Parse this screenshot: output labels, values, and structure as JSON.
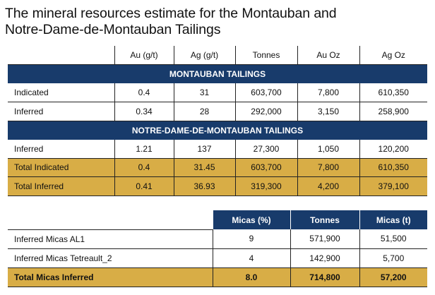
{
  "title": {
    "line1": "The mineral resources estimate for the Montauban and",
    "line2": "Notre-Dame-de-Montauban Tailings"
  },
  "resources_table": {
    "headers": [
      "Au (g/t)",
      "Ag (g/t)",
      "Tonnes",
      "Au Oz",
      "Ag Oz"
    ],
    "sections": [
      {
        "title": "MONTAUBAN TAILINGS",
        "rows": [
          {
            "label": "Indicated",
            "cells": [
              "0.4",
              "31",
              "603,700",
              "7,800",
              "610,350"
            ]
          },
          {
            "label": "Inferred",
            "cells": [
              "0.34",
              "28",
              "292,000",
              "3,150",
              "258,900"
            ]
          }
        ]
      },
      {
        "title": "NOTRE-DAME-DE-MONTAUBAN TAILINGS",
        "rows": [
          {
            "label": "Inferred",
            "cells": [
              "1.21",
              "137",
              "27,300",
              "1,050",
              "120,200"
            ]
          }
        ]
      }
    ],
    "totals": [
      {
        "label": "Total Indicated",
        "cells": [
          "0.4",
          "31.45",
          "603,700",
          "7,800",
          "610,350"
        ]
      },
      {
        "label": "Total Inferred",
        "cells": [
          "0.41",
          "36.93",
          "319,300",
          "4,200",
          "379,100"
        ]
      }
    ]
  },
  "micas_table": {
    "headers": [
      "Micas (%)",
      "Tonnes",
      "Micas (t)"
    ],
    "rows": [
      {
        "label": "Inferred Micas AL1",
        "cells": [
          "9",
          "571,900",
          "51,500"
        ]
      },
      {
        "label": "Inferred Micas Tetreault_2",
        "cells": [
          "4",
          "142,900",
          "5,700"
        ]
      }
    ],
    "total": {
      "label": "Total Micas Inferred",
      "cells": [
        "8.0",
        "714,800",
        "57,200"
      ]
    }
  },
  "colors": {
    "navy": "#183b6b",
    "gold": "#d8ad46"
  }
}
